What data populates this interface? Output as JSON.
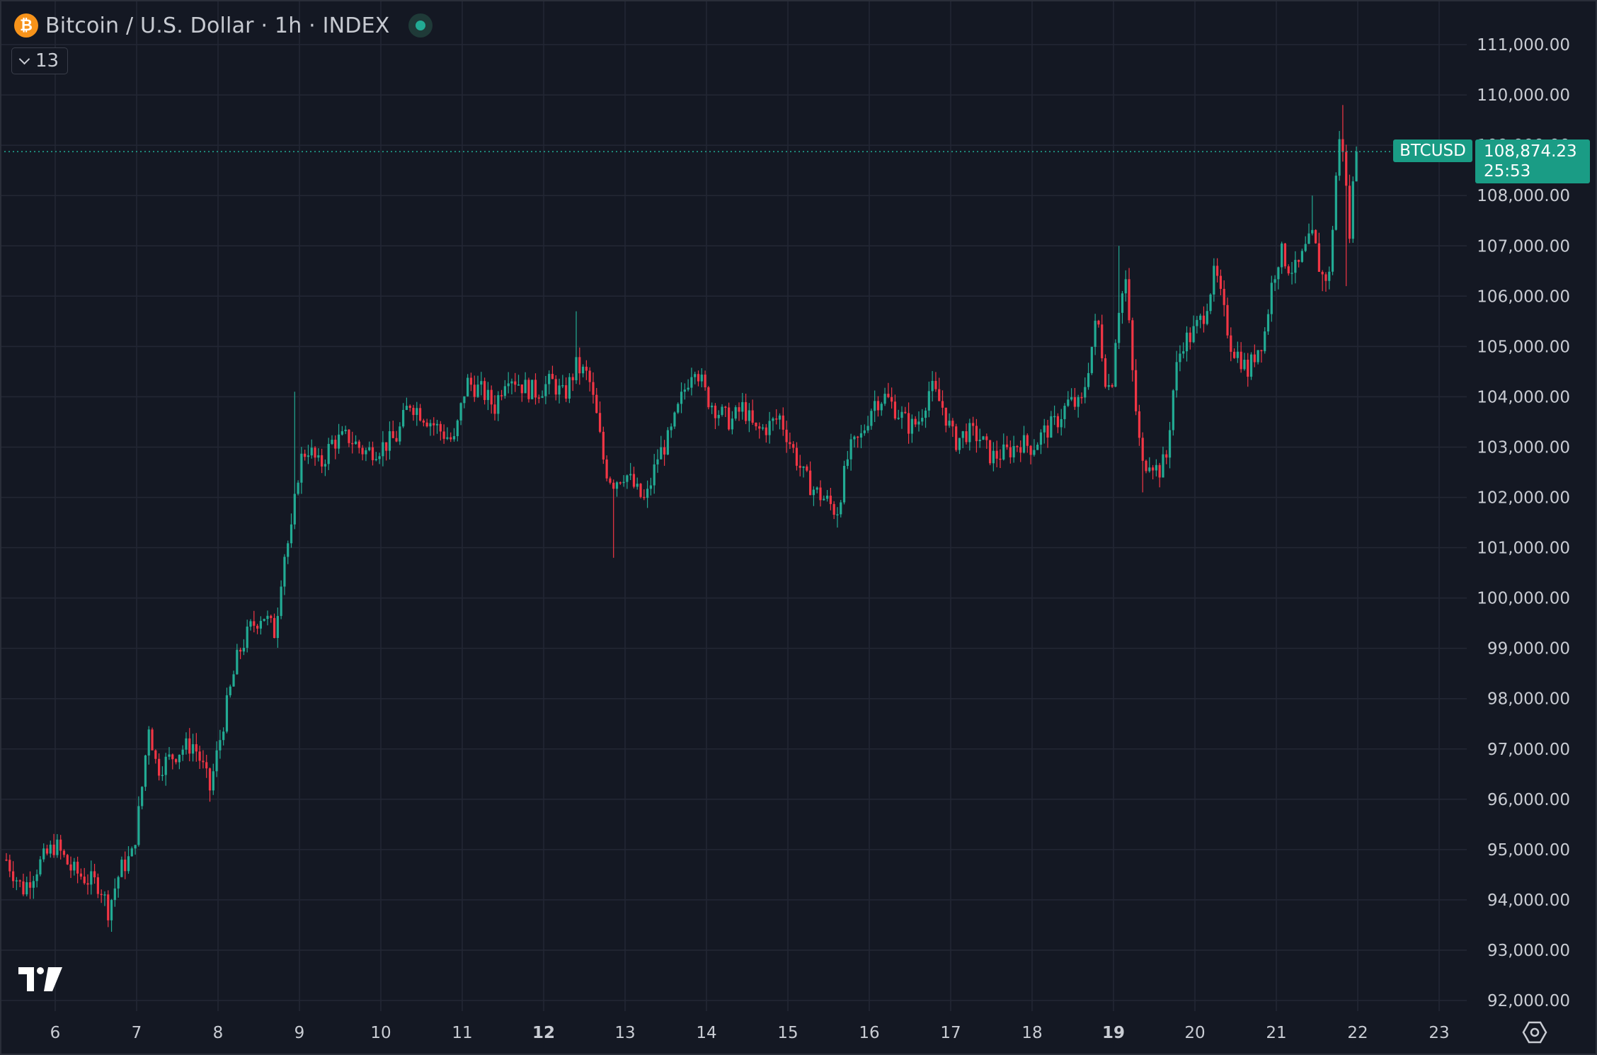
{
  "header": {
    "coin_glyph": "₿",
    "title": "Bitcoin / U.S. Dollar · 1h · INDEX",
    "collapse_count": "13"
  },
  "price_tag": {
    "symbol": "BTCUSD",
    "price": "108,874.23",
    "countdown": "25:53"
  },
  "icons": [
    "bitcoin-icon",
    "market-status-icon",
    "chevron-down-icon",
    "tradingview-logo",
    "settings-icon"
  ],
  "colors": {
    "background": "#141823",
    "grid": "#232734",
    "up": "#22ab94",
    "down": "#f23645",
    "accent": "#1a9c85"
  },
  "chart_data": {
    "type": "candlestick",
    "interval": "1h",
    "ylim": [
      92000,
      111000
    ],
    "xlim": [
      5.4,
      23.5
    ],
    "y_ticks": [
      "92,000.00",
      "93,000.00",
      "94,000.00",
      "95,000.00",
      "96,000.00",
      "97,000.00",
      "98,000.00",
      "99,000.00",
      "100,000.00",
      "101,000.00",
      "102,000.00",
      "103,000.00",
      "104,000.00",
      "105,000.00",
      "106,000.00",
      "107,000.00",
      "108,000.00",
      "109,000.00",
      "110,000.00",
      "111,000.00"
    ],
    "y_tick_values": [
      92000,
      93000,
      94000,
      95000,
      96000,
      97000,
      98000,
      99000,
      100000,
      101000,
      102000,
      103000,
      104000,
      105000,
      106000,
      107000,
      108000,
      109000,
      110000,
      111000
    ],
    "x_ticks": [
      {
        "label": "6",
        "day": 6,
        "bold": false
      },
      {
        "label": "7",
        "day": 7,
        "bold": false
      },
      {
        "label": "8",
        "day": 8,
        "bold": false
      },
      {
        "label": "9",
        "day": 9,
        "bold": false
      },
      {
        "label": "10",
        "day": 10,
        "bold": false
      },
      {
        "label": "11",
        "day": 11,
        "bold": false
      },
      {
        "label": "12",
        "day": 12,
        "bold": true
      },
      {
        "label": "13",
        "day": 13,
        "bold": false
      },
      {
        "label": "14",
        "day": 14,
        "bold": false
      },
      {
        "label": "15",
        "day": 15,
        "bold": false
      },
      {
        "label": "16",
        "day": 16,
        "bold": false
      },
      {
        "label": "17",
        "day": 17,
        "bold": false
      },
      {
        "label": "18",
        "day": 18,
        "bold": false
      },
      {
        "label": "19",
        "day": 19,
        "bold": true
      },
      {
        "label": "20",
        "day": 20,
        "bold": false
      },
      {
        "label": "21",
        "day": 21,
        "bold": false
      },
      {
        "label": "22",
        "day": 22,
        "bold": false
      },
      {
        "label": "23",
        "day": 23,
        "bold": false
      }
    ],
    "last_price": 108874.23,
    "close_path": [
      [
        5.4,
        94800
      ],
      [
        5.6,
        94200
      ],
      [
        5.8,
        94700
      ],
      [
        6.0,
        95100
      ],
      [
        6.2,
        94600
      ],
      [
        6.4,
        94400
      ],
      [
        6.55,
        94300
      ],
      [
        6.65,
        93800
      ],
      [
        6.8,
        94600
      ],
      [
        6.95,
        94900
      ],
      [
        7.05,
        96000
      ],
      [
        7.15,
        97500
      ],
      [
        7.25,
        96600
      ],
      [
        7.4,
        96800
      ],
      [
        7.55,
        97000
      ],
      [
        7.7,
        97100
      ],
      [
        7.8,
        96700
      ],
      [
        7.9,
        96200
      ],
      [
        8.0,
        97000
      ],
      [
        8.1,
        97800
      ],
      [
        8.25,
        98900
      ],
      [
        8.4,
        99400
      ],
      [
        8.55,
        99700
      ],
      [
        8.7,
        99300
      ],
      [
        8.8,
        100800
      ],
      [
        8.9,
        101300
      ],
      [
        9.0,
        102700
      ],
      [
        9.1,
        103000
      ],
      [
        9.25,
        102600
      ],
      [
        9.4,
        103100
      ],
      [
        9.6,
        103200
      ],
      [
        9.8,
        102900
      ],
      [
        10.0,
        103000
      ],
      [
        10.2,
        103200
      ],
      [
        10.35,
        103900
      ],
      [
        10.55,
        103600
      ],
      [
        10.75,
        103300
      ],
      [
        10.9,
        103100
      ],
      [
        11.05,
        104300
      ],
      [
        11.25,
        104100
      ],
      [
        11.4,
        103800
      ],
      [
        11.55,
        104500
      ],
      [
        11.75,
        104200
      ],
      [
        11.9,
        104100
      ],
      [
        12.1,
        104300
      ],
      [
        12.25,
        104000
      ],
      [
        12.4,
        104600
      ],
      [
        12.55,
        104400
      ],
      [
        12.65,
        103600
      ],
      [
        12.75,
        102600
      ],
      [
        12.85,
        102300
      ],
      [
        13.0,
        102500
      ],
      [
        13.15,
        102100
      ],
      [
        13.25,
        101900
      ],
      [
        13.4,
        102800
      ],
      [
        13.55,
        103200
      ],
      [
        13.7,
        104000
      ],
      [
        13.85,
        104700
      ],
      [
        14.0,
        104000
      ],
      [
        14.15,
        103700
      ],
      [
        14.3,
        103500
      ],
      [
        14.45,
        103800
      ],
      [
        14.6,
        103300
      ],
      [
        14.75,
        103400
      ],
      [
        14.9,
        103600
      ],
      [
        15.05,
        103000
      ],
      [
        15.2,
        102400
      ],
      [
        15.35,
        102100
      ],
      [
        15.5,
        101900
      ],
      [
        15.6,
        101700
      ],
      [
        15.75,
        102900
      ],
      [
        15.9,
        103200
      ],
      [
        16.05,
        103900
      ],
      [
        16.2,
        104000
      ],
      [
        16.35,
        103700
      ],
      [
        16.5,
        103400
      ],
      [
        16.6,
        103500
      ],
      [
        16.75,
        104200
      ],
      [
        16.9,
        103800
      ],
      [
        17.05,
        103100
      ],
      [
        17.2,
        103300
      ],
      [
        17.35,
        103200
      ],
      [
        17.5,
        102800
      ],
      [
        17.7,
        102900
      ],
      [
        17.85,
        103100
      ],
      [
        18.0,
        103000
      ],
      [
        18.15,
        103300
      ],
      [
        18.3,
        103500
      ],
      [
        18.45,
        103900
      ],
      [
        18.6,
        103800
      ],
      [
        18.7,
        104700
      ],
      [
        18.8,
        105600
      ],
      [
        18.9,
        104400
      ],
      [
        18.97,
        104100
      ],
      [
        19.05,
        105700
      ],
      [
        19.15,
        106300
      ],
      [
        19.25,
        104100
      ],
      [
        19.35,
        102600
      ],
      [
        19.45,
        102800
      ],
      [
        19.55,
        102500
      ],
      [
        19.65,
        102800
      ],
      [
        19.75,
        104400
      ],
      [
        19.85,
        105100
      ],
      [
        19.95,
        105200
      ],
      [
        20.1,
        105600
      ],
      [
        20.25,
        106500
      ],
      [
        20.35,
        105700
      ],
      [
        20.45,
        105000
      ],
      [
        20.55,
        104800
      ],
      [
        20.65,
        104500
      ],
      [
        20.75,
        104900
      ],
      [
        20.85,
        105200
      ],
      [
        20.95,
        106300
      ],
      [
        21.05,
        106900
      ],
      [
        21.15,
        106600
      ],
      [
        21.25,
        106500
      ],
      [
        21.35,
        106900
      ],
      [
        21.45,
        107200
      ],
      [
        21.55,
        106400
      ],
      [
        21.65,
        106400
      ],
      [
        21.75,
        108800
      ],
      [
        21.8,
        109300
      ],
      [
        21.85,
        108300
      ],
      [
        21.9,
        107200
      ],
      [
        21.95,
        108400
      ],
      [
        22.0,
        108874
      ]
    ],
    "wicks": [
      {
        "day": 6.65,
        "low": 93500
      },
      {
        "day": 8.95,
        "high": 104100
      },
      {
        "day": 12.4,
        "high": 105700
      },
      {
        "day": 12.85,
        "low": 100800
      },
      {
        "day": 15.6,
        "low": 101400
      },
      {
        "day": 19.05,
        "high": 107000
      },
      {
        "day": 19.35,
        "low": 102100
      },
      {
        "day": 19.55,
        "low": 102200
      },
      {
        "day": 20.65,
        "low": 104200
      },
      {
        "day": 21.45,
        "high": 108000
      },
      {
        "day": 21.55,
        "low": 106100
      },
      {
        "day": 21.8,
        "high": 109800
      },
      {
        "day": 21.85,
        "low": 106200
      }
    ]
  }
}
